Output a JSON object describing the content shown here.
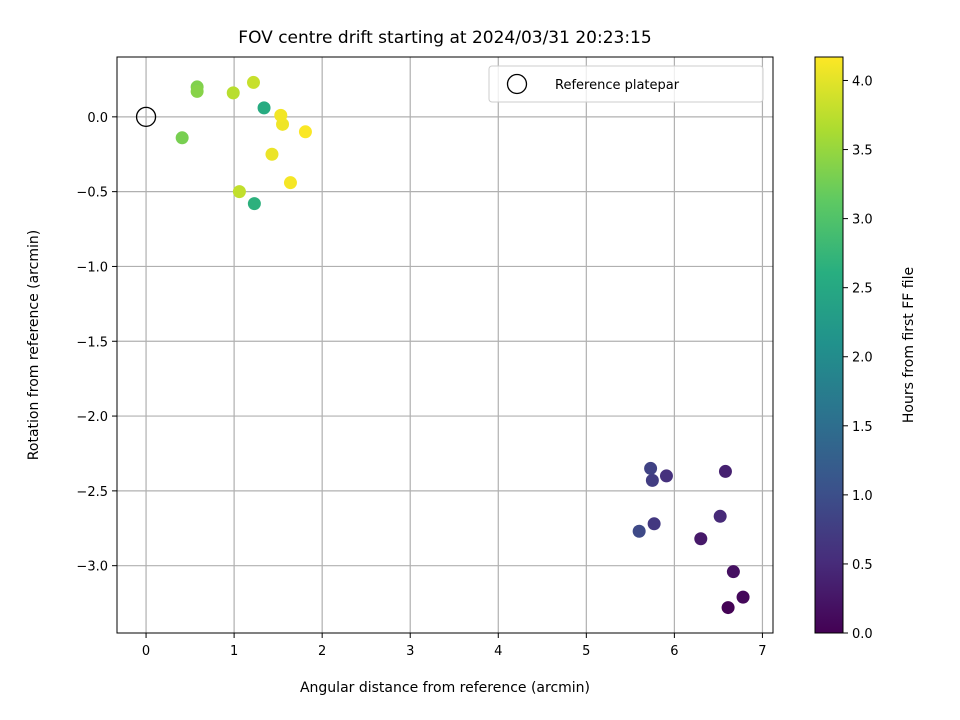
{
  "chart_data": {
    "type": "scatter",
    "title": "FOV centre drift starting at 2024/03/31 20:23:15",
    "xlabel": "Angular distance from reference (arcmin)",
    "ylabel": "Rotation from reference (arcmin)",
    "xlim": [
      -0.33,
      7.12
    ],
    "ylim": [
      -3.45,
      0.4
    ],
    "xticks": [
      0,
      1,
      2,
      3,
      4,
      5,
      6,
      7
    ],
    "yticks": [
      -3.0,
      -2.5,
      -2.0,
      -1.5,
      -1.0,
      -0.5,
      0.0
    ],
    "xtick_labels": [
      "0",
      "1",
      "2",
      "3",
      "4",
      "5",
      "6",
      "7"
    ],
    "ytick_labels": [
      "−3.0",
      "−2.5",
      "−2.0",
      "−1.5",
      "−1.0",
      "−0.5",
      "0.0"
    ],
    "grid": true,
    "colormap": "viridis",
    "colorbar": {
      "label": "Hours from first FF file",
      "range": [
        0.0,
        4.17
      ],
      "ticks": [
        0.0,
        0.5,
        1.0,
        1.5,
        2.0,
        2.5,
        3.0,
        3.5,
        4.0
      ],
      "tick_labels": [
        "0.0",
        "0.5",
        "1.0",
        "1.5",
        "2.0",
        "2.5",
        "3.0",
        "3.5",
        "4.0"
      ]
    },
    "points": [
      {
        "x": 6.61,
        "y": -3.28,
        "c": 0.02
      },
      {
        "x": 6.78,
        "y": -3.21,
        "c": 0.08
      },
      {
        "x": 6.67,
        "y": -3.04,
        "c": 0.18
      },
      {
        "x": 6.3,
        "y": -2.82,
        "c": 0.28
      },
      {
        "x": 6.58,
        "y": -2.37,
        "c": 0.38
      },
      {
        "x": 6.52,
        "y": -2.67,
        "c": 0.48
      },
      {
        "x": 5.91,
        "y": -2.4,
        "c": 0.58
      },
      {
        "x": 5.77,
        "y": -2.72,
        "c": 0.68
      },
      {
        "x": 5.75,
        "y": -2.43,
        "c": 0.75
      },
      {
        "x": 5.73,
        "y": -2.35,
        "c": 0.82
      },
      {
        "x": 5.6,
        "y": -2.77,
        "c": 0.92
      },
      {
        "x": 1.34,
        "y": 0.06,
        "c": 2.55
      },
      {
        "x": 1.23,
        "y": -0.58,
        "c": 2.65
      },
      {
        "x": 0.41,
        "y": -0.14,
        "c": 3.3
      },
      {
        "x": 0.58,
        "y": 0.2,
        "c": 3.35
      },
      {
        "x": 0.58,
        "y": 0.17,
        "c": 3.4
      },
      {
        "x": 0.99,
        "y": 0.16,
        "c": 3.72
      },
      {
        "x": 1.06,
        "y": -0.5,
        "c": 3.78
      },
      {
        "x": 1.22,
        "y": 0.23,
        "c": 3.82
      },
      {
        "x": 1.43,
        "y": -0.25,
        "c": 4.05
      },
      {
        "x": 1.55,
        "y": -0.05,
        "c": 4.08
      },
      {
        "x": 1.53,
        "y": 0.01,
        "c": 4.1
      },
      {
        "x": 1.64,
        "y": -0.44,
        "c": 4.12
      },
      {
        "x": 1.81,
        "y": -0.1,
        "c": 4.15
      }
    ],
    "reference": {
      "x": 0.0,
      "y": 0.0
    },
    "legend": {
      "placement": "top-right",
      "entries": [
        "Reference platepar"
      ]
    }
  }
}
